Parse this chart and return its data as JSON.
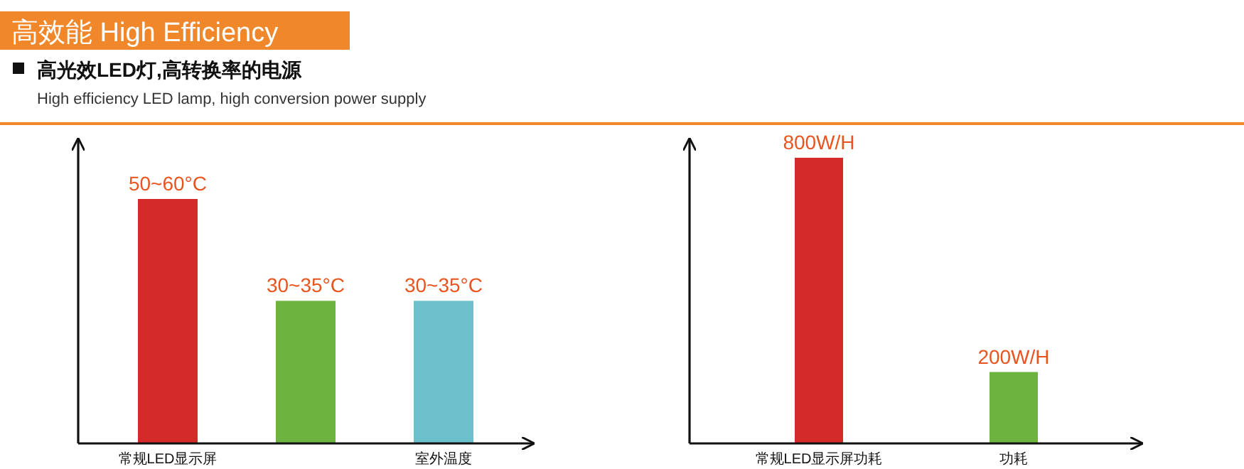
{
  "chart_data": [
    {
      "type": "bar",
      "title": "高效能 High Efficiency",
      "subtitle": "高光效LED灯,高转换率的电源",
      "annotations": [
        "High efficiency LED lamp, high conversion power supply"
      ],
      "categories": [
        "常规LED显示屏",
        null,
        "室外温度"
      ],
      "values": [
        60,
        35,
        35
      ],
      "colors": [
        "#d42a2a",
        "#6db33f",
        "#6cc0cc"
      ],
      "value_labels": [
        "50~60°C",
        "30~35°C",
        "30~35°C"
      ]
    },
    {
      "type": "bar",
      "categories": [
        "常规LED显示屏功耗",
        "功耗"
      ],
      "values": [
        800,
        200
      ],
      "colors": [
        "#d42a2a",
        "#6db33f"
      ],
      "value_labels": [
        "800W/H",
        "200W/H"
      ]
    }
  ]
}
